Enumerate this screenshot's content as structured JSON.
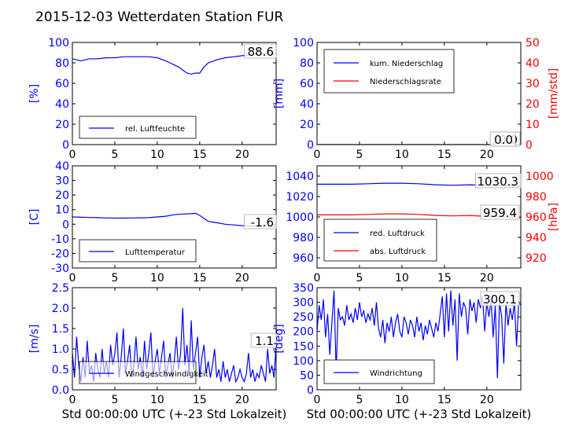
{
  "title": "2015-12-03 Wetterdaten Station FUR",
  "colors": {
    "primary": "#0000ff",
    "secondary": "#ff0000",
    "axis": "#000000"
  },
  "xlabel": "Std 00:00:00 UTC (+-23 Std Lokalzeit)",
  "chart_data": [
    {
      "type": "line",
      "ylabel": "[%]",
      "xlim": [
        0,
        24
      ],
      "ylim": [
        0,
        100
      ],
      "xticks": [
        0,
        5,
        10,
        15,
        20
      ],
      "yticks": [
        0,
        20,
        40,
        60,
        80,
        100
      ],
      "annotation": "88.6",
      "legend": [
        "rel. Luftfeuchte"
      ],
      "legend_position": "lower-center",
      "series": [
        {
          "name": "rel. Luftfeuchte",
          "color": "#0000ff",
          "x": [
            0,
            1,
            2,
            3,
            4,
            5,
            6,
            7,
            8,
            9,
            10,
            11,
            11.5,
            12,
            12.5,
            13,
            13.5,
            14,
            14.5,
            15,
            15.5,
            16,
            17,
            18,
            19,
            20,
            21,
            22,
            23,
            24
          ],
          "y": [
            84,
            82,
            84,
            84,
            85,
            85,
            86,
            86,
            86,
            86,
            85,
            82,
            80,
            78,
            76,
            73,
            70,
            69,
            70,
            70,
            76,
            80,
            83,
            85,
            86,
            87,
            88,
            89,
            89,
            89
          ]
        }
      ]
    },
    {
      "type": "line",
      "ylabel": "[mm]",
      "ylabel_right": "[mm/std]",
      "xlim": [
        0,
        24
      ],
      "ylim": [
        0,
        100
      ],
      "ylim_right": [
        0,
        50
      ],
      "xticks": [
        0,
        5,
        10,
        15,
        20
      ],
      "yticks": [
        0,
        20,
        40,
        60,
        80,
        100
      ],
      "yticks_right": [
        0,
        10,
        20,
        30,
        40,
        50
      ],
      "annotation": "0.0",
      "annotation2": "0.0",
      "legend": [
        "kum. Niederschlag",
        "Niederschlagsrate"
      ],
      "legend_position": "upper-left",
      "series": [
        {
          "name": "kum. Niederschlag",
          "color": "#0000ff",
          "x": [
            0,
            24
          ],
          "y": [
            0,
            0
          ]
        },
        {
          "name": "Niederschlagsrate",
          "color": "#ff0000",
          "axis": "right",
          "x": [
            0,
            24
          ],
          "y": [
            0,
            0
          ]
        }
      ]
    },
    {
      "type": "line",
      "ylabel": "[C]",
      "xlim": [
        0,
        24
      ],
      "ylim": [
        -30,
        40
      ],
      "xticks": [
        0,
        5,
        10,
        15,
        20
      ],
      "yticks": [
        -30,
        -20,
        -10,
        0,
        10,
        20,
        30,
        40
      ],
      "annotation": "-1.6",
      "legend": [
        "Lufttemperatur"
      ],
      "legend_position": "lower-center",
      "series": [
        {
          "name": "Lufttemperatur",
          "color": "#0000ff",
          "x": [
            0,
            1,
            2,
            3,
            4,
            5,
            6,
            7,
            8,
            9,
            10,
            11,
            12,
            13,
            14,
            14.5,
            15,
            15.5,
            16,
            17,
            18,
            19,
            20,
            21,
            22,
            23,
            24
          ],
          "y": [
            5,
            4.8,
            4.6,
            4.5,
            4.3,
            4.2,
            4.2,
            4.3,
            4.4,
            4.5,
            5,
            5.5,
            6.5,
            7,
            7.2,
            7.5,
            6,
            4,
            2,
            1,
            0,
            -0.5,
            -1,
            -1.2,
            -1.4,
            -1.5,
            -1.6
          ]
        }
      ]
    },
    {
      "type": "line",
      "ylabel_right": "[hPa]",
      "xlim": [
        0,
        24
      ],
      "ylim": [
        950,
        1050
      ],
      "ylim_right": [
        910,
        1010
      ],
      "xticks": [
        0,
        5,
        10,
        15,
        20
      ],
      "yticks": [
        960,
        980,
        1000,
        1020,
        1040
      ],
      "yticks_right": [
        920,
        940,
        960,
        980,
        1000
      ],
      "annotation": "1030.3",
      "annotation2": "959.4",
      "legend": [
        "red. Luftdruck",
        "abs. Luftdruck"
      ],
      "legend_position": "lower-left",
      "series": [
        {
          "name": "red. Luftdruck",
          "color": "#0000ff",
          "x": [
            0,
            2,
            4,
            6,
            8,
            10,
            12,
            14,
            16,
            18,
            20,
            22,
            24
          ],
          "y": [
            1032,
            1032,
            1032,
            1032.5,
            1033,
            1033,
            1032.5,
            1031.5,
            1031,
            1031.5,
            1031,
            1030.5,
            1030.3
          ]
        },
        {
          "name": "abs. Luftdruck",
          "color": "#ff0000",
          "axis": "right",
          "x": [
            0,
            2,
            4,
            6,
            8,
            10,
            12,
            14,
            16,
            18,
            20,
            22,
            24
          ],
          "y": [
            962,
            962,
            962,
            962.5,
            963,
            963,
            962.5,
            961.5,
            961,
            961.5,
            960.5,
            960,
            959.4
          ]
        }
      ]
    },
    {
      "type": "line",
      "ylabel": "[m/s]",
      "xlim": [
        0,
        24
      ],
      "ylim": [
        0,
        2.5
      ],
      "xticks": [
        0,
        5,
        10,
        15,
        20
      ],
      "yticks": [
        0,
        0.5,
        1.0,
        1.5,
        2.0,
        2.5
      ],
      "annotation": "1.1",
      "legend": [
        "Windgeschwindigkeit"
      ],
      "legend_position": "lower-center",
      "series": [
        {
          "name": "Windgeschwindigkeit",
          "color": "#0000ff",
          "x": [
            0,
            0.25,
            0.5,
            0.75,
            1,
            1.25,
            1.5,
            1.75,
            2,
            2.25,
            2.5,
            2.75,
            3,
            3.25,
            3.5,
            3.75,
            4,
            4.25,
            4.5,
            4.75,
            5,
            5.25,
            5.5,
            5.75,
            6,
            6.25,
            6.5,
            6.75,
            7,
            7.25,
            7.5,
            7.75,
            8,
            8.25,
            8.5,
            8.75,
            9,
            9.25,
            9.5,
            9.75,
            10,
            10.25,
            10.5,
            10.75,
            11,
            11.25,
            11.5,
            11.75,
            12,
            12.25,
            12.5,
            12.75,
            13,
            13.25,
            13.5,
            13.75,
            14,
            14.25,
            14.5,
            14.75,
            15,
            15.25,
            15.5,
            15.75,
            16,
            16.25,
            16.5,
            16.75,
            17,
            17.25,
            17.5,
            17.75,
            18,
            18.25,
            18.5,
            18.75,
            19,
            19.25,
            19.5,
            19.75,
            20,
            20.25,
            20.5,
            20.75,
            21,
            21.25,
            21.5,
            21.75,
            22,
            22.25,
            22.5,
            22.75,
            23,
            23.25,
            23.5,
            23.75,
            24
          ],
          "y": [
            0.9,
            0.3,
            1.3,
            0.6,
            0.2,
            0.8,
            0.3,
            1.2,
            0.4,
            0.6,
            0.2,
            0.9,
            0.5,
            0.3,
            1.0,
            0.4,
            0.7,
            0.3,
            1.1,
            0.6,
            0.9,
            1.4,
            0.3,
            0.8,
            1.5,
            0.4,
            0.7,
            1.1,
            0.3,
            0.6,
            1.3,
            0.5,
            0.8,
            0.3,
            1.2,
            0.5,
            0.9,
            1.4,
            0.3,
            0.7,
            1.0,
            0.4,
            0.8,
            1.2,
            0.3,
            0.6,
            0.9,
            0.3,
            0.7,
            1.3,
            0.5,
            0.9,
            2.0,
            0.6,
            1.1,
            0.4,
            1.7,
            0.5,
            0.9,
            1.3,
            0.3,
            0.8,
            1.1,
            0.4,
            0.7,
            0.3,
            0.6,
            1.0,
            0.3,
            0.5,
            0.2,
            0.7,
            0.3,
            0.5,
            0.2,
            0.4,
            0.6,
            0.2,
            0.3,
            0.5,
            0.3,
            0.2,
            0.4,
            0.9,
            0.3,
            0.5,
            0.2,
            0.4,
            0.3,
            0.6,
            0.4,
            0.2,
            1.0,
            0.4,
            0.6,
            0.3,
            1.1
          ]
        }
      ]
    },
    {
      "type": "line",
      "ylabel": "[deg]",
      "xlim": [
        0,
        24
      ],
      "ylim": [
        0,
        350
      ],
      "xticks": [
        0,
        5,
        10,
        15,
        20
      ],
      "yticks": [
        0,
        50,
        100,
        150,
        200,
        250,
        300,
        350
      ],
      "annotation": "300.1",
      "legend": [
        "Windrichtung"
      ],
      "legend_position": "lower-left",
      "series": [
        {
          "name": "Windrichtung",
          "color": "#0000ff",
          "x": [
            0,
            0.25,
            0.5,
            0.75,
            1,
            1.25,
            1.5,
            1.75,
            2,
            2.25,
            2.5,
            2.75,
            3,
            3.25,
            3.5,
            3.75,
            4,
            4.25,
            4.5,
            4.75,
            5,
            5.25,
            5.5,
            5.75,
            6,
            6.25,
            6.5,
            6.75,
            7,
            7.25,
            7.5,
            7.75,
            8,
            8.25,
            8.5,
            8.75,
            9,
            9.25,
            9.5,
            9.75,
            10,
            10.25,
            10.5,
            10.75,
            11,
            11.25,
            11.5,
            11.75,
            12,
            12.25,
            12.5,
            12.75,
            13,
            13.25,
            13.5,
            13.75,
            14,
            14.25,
            14.5,
            14.75,
            15,
            15.25,
            15.5,
            15.75,
            16,
            16.25,
            16.5,
            16.75,
            17,
            17.25,
            17.5,
            17.75,
            18,
            18.25,
            18.5,
            18.75,
            19,
            19.25,
            19.5,
            19.75,
            20,
            20.25,
            20.5,
            20.75,
            21,
            21.25,
            21.5,
            21.75,
            22,
            22.25,
            22.5,
            22.75,
            23,
            23.25,
            23.5,
            23.75,
            24
          ],
          "y": [
            200,
            290,
            240,
            310,
            180,
            260,
            120,
            230,
            340,
            60,
            280,
            240,
            250,
            220,
            290,
            240,
            260,
            230,
            280,
            240,
            300,
            250,
            270,
            230,
            260,
            240,
            280,
            220,
            300,
            210,
            180,
            240,
            160,
            230,
            200,
            250,
            180,
            230,
            260,
            200,
            180,
            250,
            230,
            190,
            240,
            220,
            180,
            250,
            200,
            230,
            170,
            220,
            190,
            240,
            210,
            180,
            230,
            200,
            260,
            320,
            180,
            330,
            200,
            340,
            220,
            310,
            100,
            330,
            250,
            300,
            280,
            190,
            310,
            270,
            300,
            230,
            310,
            280,
            320,
            200,
            300,
            250,
            310,
            180,
            290,
            40,
            300,
            250,
            90,
            300,
            220,
            280,
            240,
            300,
            150,
            300,
            290
          ]
        }
      ]
    }
  ]
}
